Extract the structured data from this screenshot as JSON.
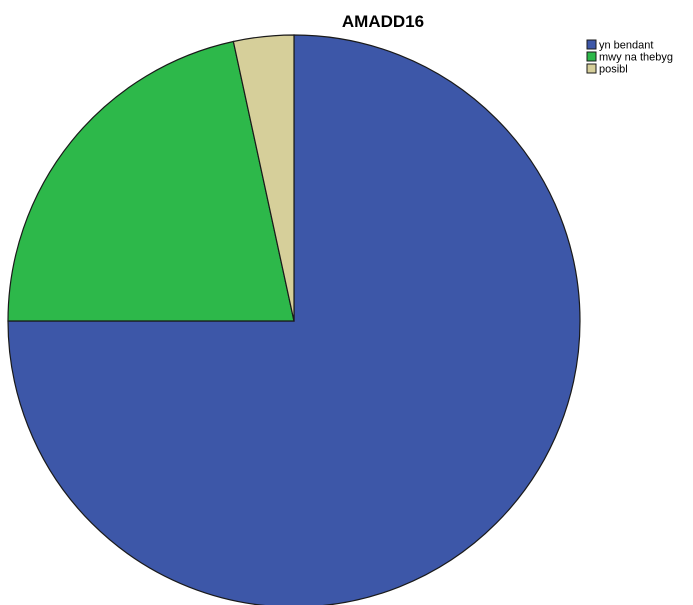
{
  "chart_data": {
    "type": "pie",
    "title": "AMADD16",
    "categories": [
      "yn bendant",
      "mwy na thebyg",
      "posibl"
    ],
    "values": [
      75.0,
      21.6,
      3.4
    ],
    "colors": [
      "#3d57a8",
      "#2db84a",
      "#d6cf9a"
    ],
    "start_angle_deg": 0,
    "direction": "clockwise",
    "legend_position": "top-right"
  }
}
